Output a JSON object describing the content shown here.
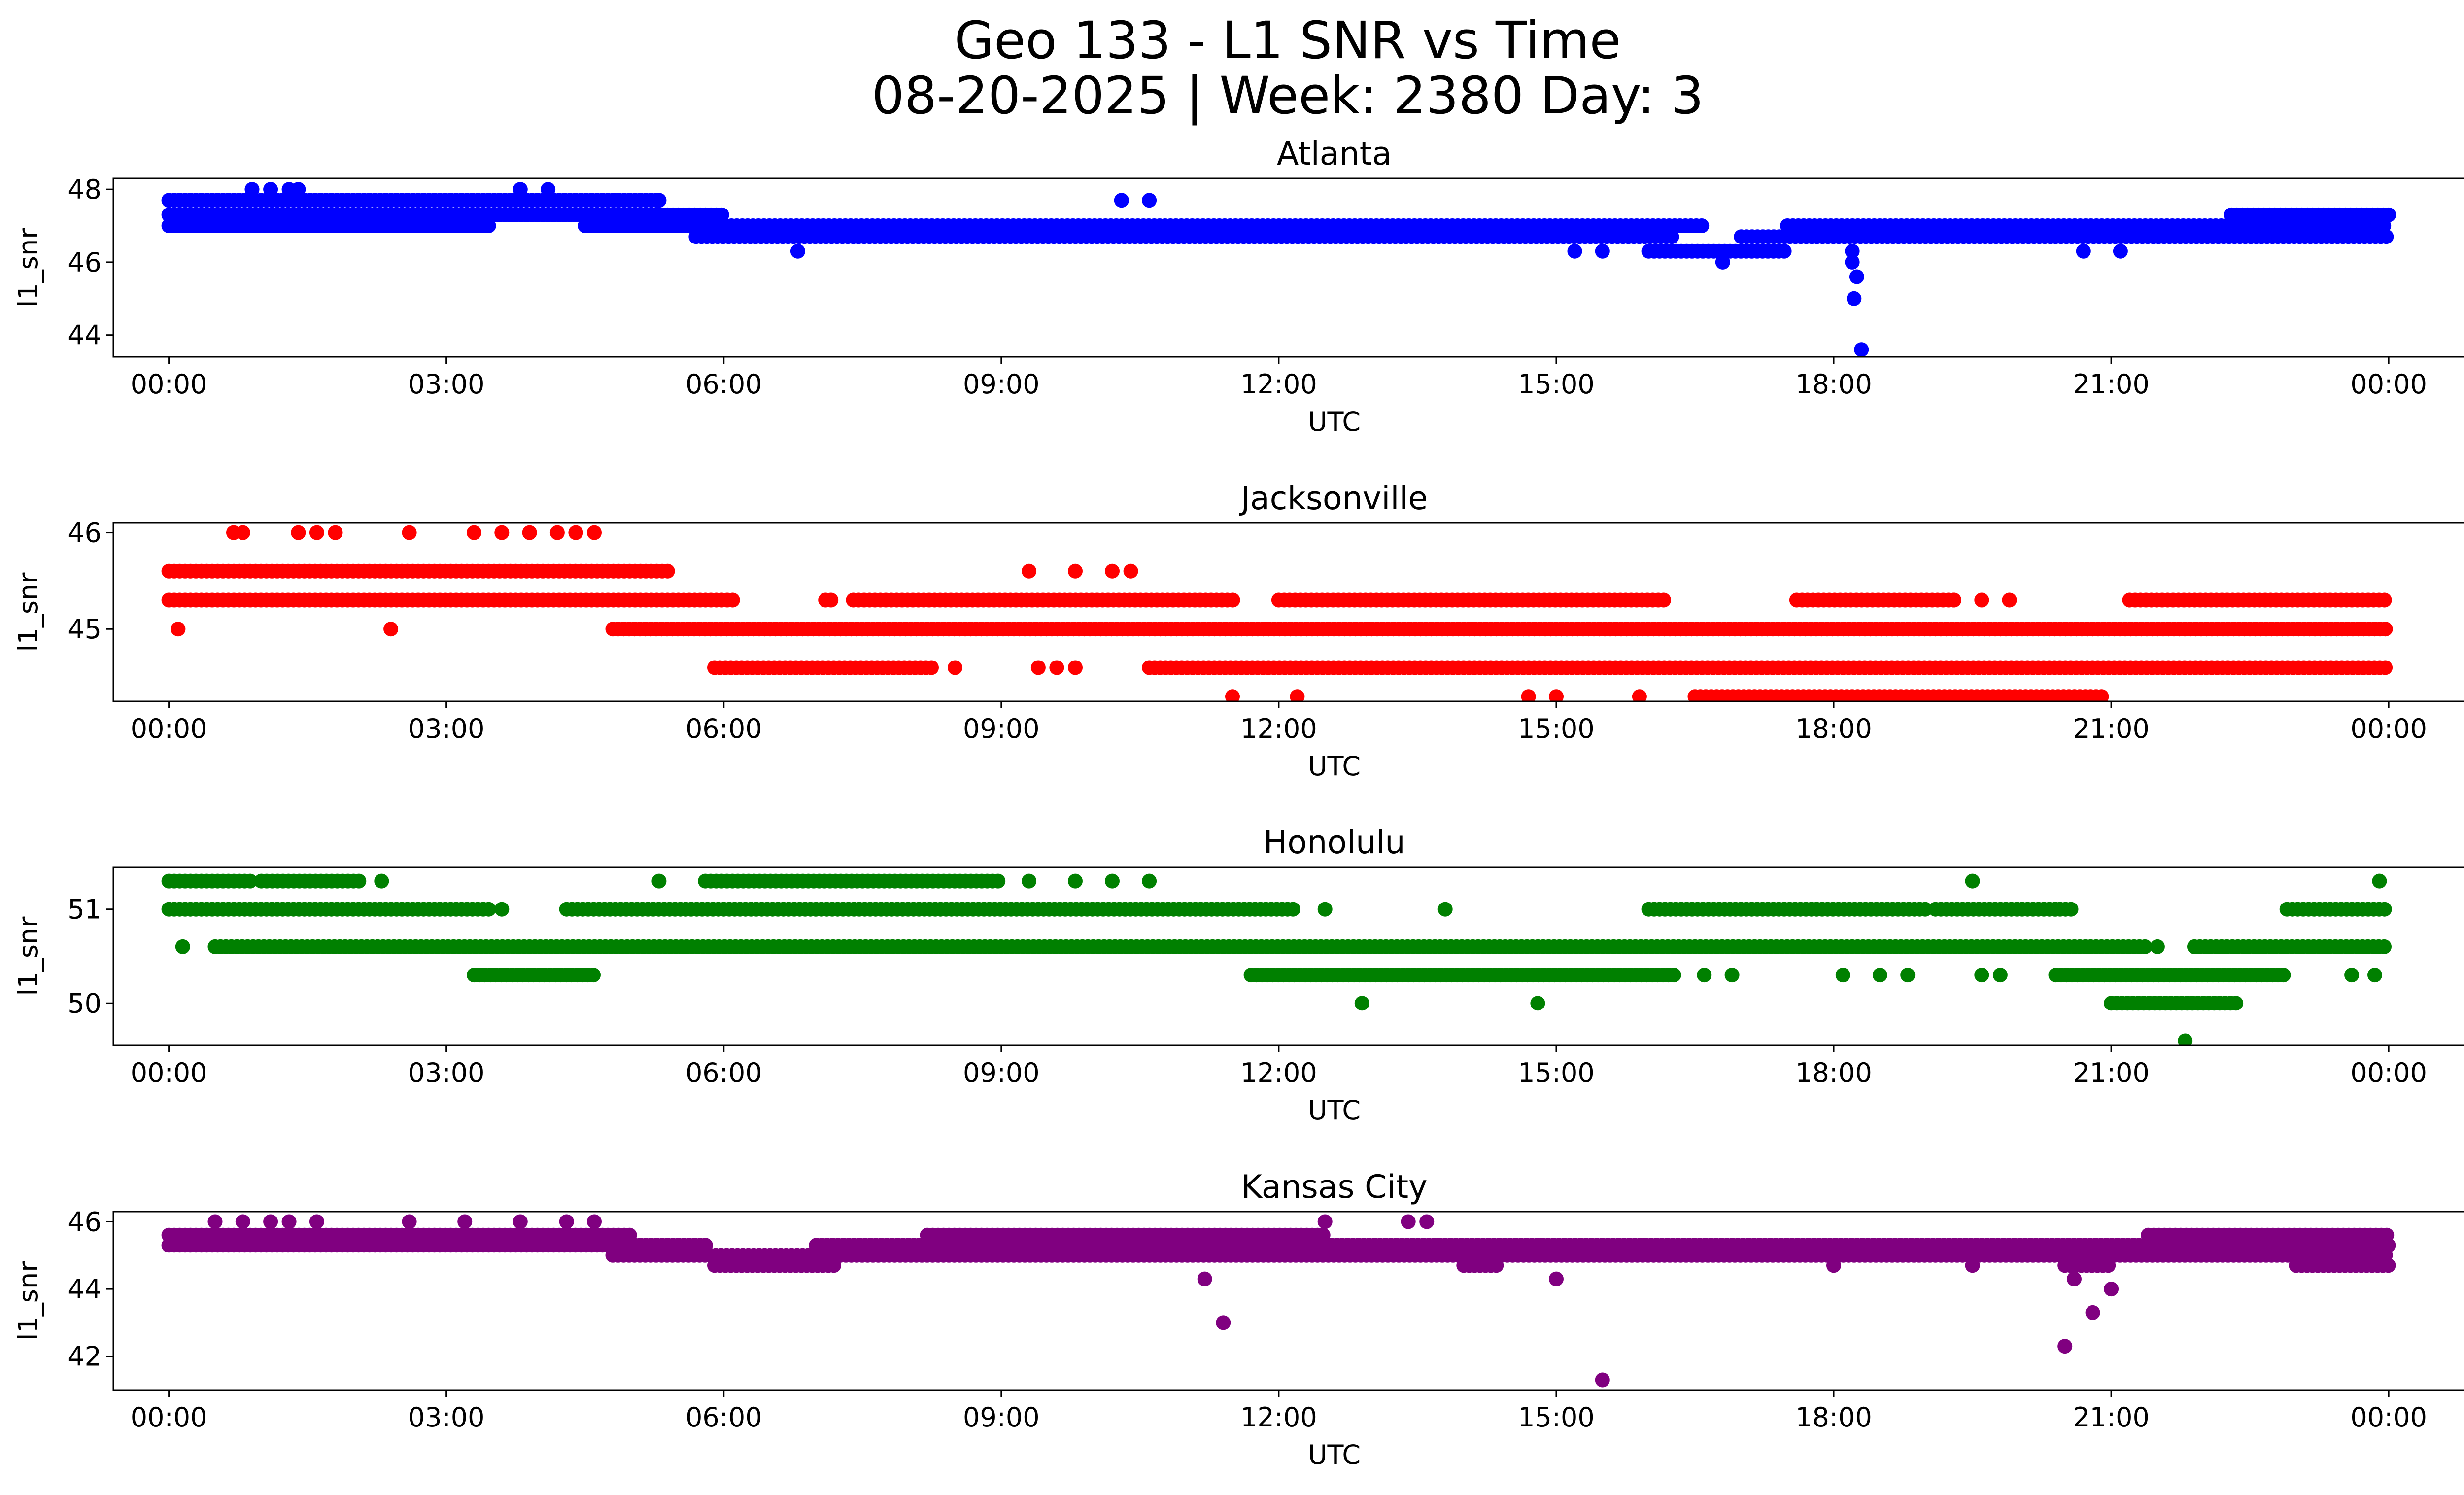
{
  "figure": {
    "title_line1": "Geo 133 - L1 SNR vs Time",
    "title_line2": "08-20-2025 | Week: 2380 Day: 3"
  },
  "chart_data": [
    {
      "type": "scatter",
      "title": "Atlanta",
      "xlabel": "UTC",
      "ylabel": "l1_snr",
      "color": "#0000ff",
      "xlim": [
        -0.6,
        25.8
      ],
      "ylim": [
        43.4,
        48.3
      ],
      "x_ticks": [
        0,
        3,
        6,
        9,
        12,
        15,
        18,
        21,
        24
      ],
      "x_tick_labels": [
        "00:00",
        "03:00",
        "06:00",
        "09:00",
        "12:00",
        "15:00",
        "18:00",
        "21:00",
        "00:00"
      ],
      "y_ticks": [
        44,
        46,
        48
      ],
      "y_tick_labels": [
        "44",
        "46",
        "48"
      ],
      "bands": [
        {
          "y": 47.7,
          "segments": [
            [
              0.0,
              5.3
            ]
          ]
        },
        {
          "y": 47.3,
          "segments": [
            [
              0.0,
              6.0
            ],
            [
              22.3,
              24.0
            ]
          ]
        },
        {
          "y": 47.0,
          "segments": [
            [
              0.0,
              3.5
            ],
            [
              4.5,
              16.6
            ],
            [
              17.5,
              24.0
            ]
          ]
        },
        {
          "y": 46.7,
          "segments": [
            [
              5.7,
              16.3
            ],
            [
              17.0,
              24.0
            ]
          ]
        },
        {
          "y": 46.3,
          "segments": [
            [
              16.0,
              17.5
            ]
          ]
        }
      ],
      "points": [
        {
          "x": 0.9,
          "y": 48.0
        },
        {
          "x": 1.1,
          "y": 48.0
        },
        {
          "x": 1.3,
          "y": 48.0
        },
        {
          "x": 1.4,
          "y": 48.0
        },
        {
          "x": 3.8,
          "y": 48.0
        },
        {
          "x": 4.1,
          "y": 48.0
        },
        {
          "x": 5.3,
          "y": 47.7
        },
        {
          "x": 10.3,
          "y": 47.7
        },
        {
          "x": 10.6,
          "y": 47.7
        },
        {
          "x": 6.8,
          "y": 46.3
        },
        {
          "x": 15.2,
          "y": 46.3
        },
        {
          "x": 15.5,
          "y": 46.3
        },
        {
          "x": 16.8,
          "y": 46.0
        },
        {
          "x": 18.2,
          "y": 46.3
        },
        {
          "x": 18.2,
          "y": 46.0
        },
        {
          "x": 18.25,
          "y": 45.6
        },
        {
          "x": 18.22,
          "y": 45.0
        },
        {
          "x": 18.3,
          "y": 43.6
        },
        {
          "x": 20.7,
          "y": 46.3
        },
        {
          "x": 21.1,
          "y": 46.3
        }
      ]
    },
    {
      "type": "scatter",
      "title": "Jacksonville",
      "xlabel": "UTC",
      "ylabel": "l1_snr",
      "color": "#ff0000",
      "xlim": [
        -0.6,
        25.8
      ],
      "ylim": [
        44.25,
        46.1
      ],
      "x_ticks": [
        0,
        3,
        6,
        9,
        12,
        15,
        18,
        21,
        24
      ],
      "x_tick_labels": [
        "00:00",
        "03:00",
        "06:00",
        "09:00",
        "12:00",
        "15:00",
        "18:00",
        "21:00",
        "00:00"
      ],
      "y_ticks": [
        45,
        46
      ],
      "y_tick_labels": [
        "45",
        "46"
      ],
      "bands": [
        {
          "y": 45.6,
          "segments": [
            [
              0.0,
              5.4
            ]
          ]
        },
        {
          "y": 45.3,
          "segments": [
            [
              0.0,
              6.1
            ],
            [
              7.1,
              7.2
            ],
            [
              7.4,
              11.5
            ],
            [
              12.0,
              16.2
            ],
            [
              17.6,
              19.3
            ],
            [
              21.2,
              24.0
            ]
          ]
        },
        {
          "y": 45.0,
          "segments": [
            [
              4.8,
              24.0
            ]
          ]
        },
        {
          "y": 44.6,
          "segments": [
            [
              5.9,
              8.3
            ],
            [
              10.6,
              24.0
            ]
          ]
        },
        {
          "y": 44.3,
          "segments": [
            [
              16.5,
              20.9
            ]
          ]
        }
      ],
      "points": [
        {
          "x": 0.7,
          "y": 46.0
        },
        {
          "x": 0.8,
          "y": 46.0
        },
        {
          "x": 1.4,
          "y": 46.0
        },
        {
          "x": 1.6,
          "y": 46.0
        },
        {
          "x": 1.8,
          "y": 46.0
        },
        {
          "x": 2.6,
          "y": 46.0
        },
        {
          "x": 3.3,
          "y": 46.0
        },
        {
          "x": 3.6,
          "y": 46.0
        },
        {
          "x": 3.9,
          "y": 46.0
        },
        {
          "x": 4.2,
          "y": 46.0
        },
        {
          "x": 4.4,
          "y": 46.0
        },
        {
          "x": 4.6,
          "y": 46.0
        },
        {
          "x": 0.1,
          "y": 45.0
        },
        {
          "x": 2.4,
          "y": 45.0
        },
        {
          "x": 9.3,
          "y": 45.6
        },
        {
          "x": 9.8,
          "y": 45.6
        },
        {
          "x": 10.2,
          "y": 45.6
        },
        {
          "x": 10.4,
          "y": 45.6
        },
        {
          "x": 8.5,
          "y": 44.6
        },
        {
          "x": 9.4,
          "y": 44.6
        },
        {
          "x": 9.6,
          "y": 44.6
        },
        {
          "x": 9.8,
          "y": 44.6
        },
        {
          "x": 11.5,
          "y": 44.3
        },
        {
          "x": 12.2,
          "y": 44.3
        },
        {
          "x": 14.7,
          "y": 44.3
        },
        {
          "x": 15.0,
          "y": 44.3
        },
        {
          "x": 15.9,
          "y": 44.3
        },
        {
          "x": 19.3,
          "y": 45.3
        },
        {
          "x": 19.6,
          "y": 45.3
        },
        {
          "x": 19.9,
          "y": 45.3
        }
      ]
    },
    {
      "type": "scatter",
      "title": "Honolulu",
      "xlabel": "UTC",
      "ylabel": "l1_snr",
      "color": "#008000",
      "xlim": [
        -0.6,
        25.8
      ],
      "ylim": [
        49.55,
        51.45
      ],
      "x_ticks": [
        0,
        3,
        6,
        9,
        12,
        15,
        18,
        21,
        24
      ],
      "x_tick_labels": [
        "00:00",
        "03:00",
        "06:00",
        "09:00",
        "12:00",
        "15:00",
        "18:00",
        "21:00",
        "00:00"
      ],
      "y_ticks": [
        50,
        51
      ],
      "y_tick_labels": [
        "50",
        "51"
      ],
      "bands": [
        {
          "y": 51.3,
          "segments": [
            [
              0.0,
              0.9
            ],
            [
              1.0,
              2.1
            ],
            [
              5.8,
              9.0
            ]
          ]
        },
        {
          "y": 51.0,
          "segments": [
            [
              0.0,
              3.5
            ],
            [
              4.3,
              12.2
            ],
            [
              16.0,
              19.0
            ],
            [
              19.1,
              20.6
            ],
            [
              22.9,
              24.0
            ]
          ]
        },
        {
          "y": 50.6,
          "segments": [
            [
              0.5,
              21.4
            ],
            [
              21.9,
              24.0
            ]
          ]
        },
        {
          "y": 50.3,
          "segments": [
            [
              3.3,
              4.6
            ],
            [
              11.7,
              16.3
            ],
            [
              20.4,
              22.9
            ]
          ]
        },
        {
          "y": 50.0,
          "segments": [
            [
              21.0,
              22.4
            ]
          ]
        }
      ],
      "points": [
        {
          "x": 0.15,
          "y": 50.6
        },
        {
          "x": 2.3,
          "y": 51.3
        },
        {
          "x": 3.6,
          "y": 51.0
        },
        {
          "x": 5.3,
          "y": 51.3
        },
        {
          "x": 9.3,
          "y": 51.3
        },
        {
          "x": 9.8,
          "y": 51.3
        },
        {
          "x": 10.2,
          "y": 51.3
        },
        {
          "x": 10.6,
          "y": 51.3
        },
        {
          "x": 12.5,
          "y": 51.0
        },
        {
          "x": 13.8,
          "y": 51.0
        },
        {
          "x": 12.9,
          "y": 50.0
        },
        {
          "x": 14.8,
          "y": 50.0
        },
        {
          "x": 16.6,
          "y": 50.3
        },
        {
          "x": 16.9,
          "y": 50.3
        },
        {
          "x": 18.1,
          "y": 50.3
        },
        {
          "x": 18.5,
          "y": 50.3
        },
        {
          "x": 18.8,
          "y": 50.3
        },
        {
          "x": 19.6,
          "y": 50.3
        },
        {
          "x": 19.8,
          "y": 50.3
        },
        {
          "x": 19.5,
          "y": 51.3
        },
        {
          "x": 20.4,
          "y": 51.0
        },
        {
          "x": 21.8,
          "y": 49.6
        },
        {
          "x": 21.5,
          "y": 50.6
        },
        {
          "x": 23.6,
          "y": 50.3
        },
        {
          "x": 23.85,
          "y": 50.3
        },
        {
          "x": 23.9,
          "y": 51.3
        }
      ]
    },
    {
      "type": "scatter",
      "title": "Kansas City",
      "xlabel": "UTC",
      "ylabel": "l1_snr",
      "color": "#800080",
      "xlim": [
        -0.6,
        25.8
      ],
      "ylim": [
        41.0,
        46.3
      ],
      "x_ticks": [
        0,
        3,
        6,
        9,
        12,
        15,
        18,
        21,
        24
      ],
      "x_tick_labels": [
        "00:00",
        "03:00",
        "06:00",
        "09:00",
        "12:00",
        "15:00",
        "18:00",
        "21:00",
        "00:00"
      ],
      "y_ticks": [
        42,
        44,
        46
      ],
      "y_tick_labels": [
        "42",
        "44",
        "46"
      ],
      "bands": [
        {
          "y": 45.6,
          "segments": [
            [
              0.0,
              5.0
            ],
            [
              8.2,
              12.5
            ],
            [
              21.4,
              24.0
            ]
          ]
        },
        {
          "y": 45.3,
          "segments": [
            [
              0.0,
              5.8
            ],
            [
              7.0,
              24.0
            ]
          ]
        },
        {
          "y": 45.0,
          "segments": [
            [
              4.8,
              24.0
            ]
          ]
        },
        {
          "y": 44.7,
          "segments": [
            [
              5.9,
              7.2
            ],
            [
              14.0,
              14.4
            ],
            [
              20.5,
              21.0
            ],
            [
              23.0,
              24.0
            ]
          ]
        }
      ],
      "points": [
        {
          "x": 0.5,
          "y": 46.0
        },
        {
          "x": 0.8,
          "y": 46.0
        },
        {
          "x": 1.1,
          "y": 46.0
        },
        {
          "x": 1.3,
          "y": 46.0
        },
        {
          "x": 1.6,
          "y": 46.0
        },
        {
          "x": 2.6,
          "y": 46.0
        },
        {
          "x": 3.2,
          "y": 46.0
        },
        {
          "x": 3.8,
          "y": 46.0
        },
        {
          "x": 4.3,
          "y": 46.0
        },
        {
          "x": 4.6,
          "y": 46.0
        },
        {
          "x": 12.5,
          "y": 46.0
        },
        {
          "x": 13.4,
          "y": 46.0
        },
        {
          "x": 13.6,
          "y": 46.0
        },
        {
          "x": 11.2,
          "y": 44.3
        },
        {
          "x": 11.4,
          "y": 43.0
        },
        {
          "x": 15.0,
          "y": 44.3
        },
        {
          "x": 15.5,
          "y": 41.3
        },
        {
          "x": 20.5,
          "y": 42.3
        },
        {
          "x": 20.6,
          "y": 44.3
        },
        {
          "x": 20.8,
          "y": 43.3
        },
        {
          "x": 21.0,
          "y": 44.0
        },
        {
          "x": 18.0,
          "y": 44.7
        },
        {
          "x": 19.5,
          "y": 44.7
        }
      ]
    }
  ]
}
